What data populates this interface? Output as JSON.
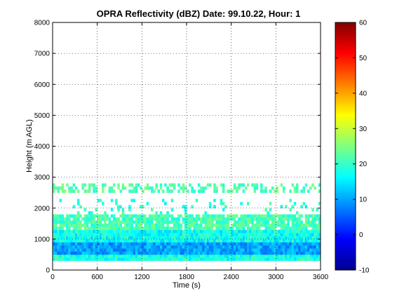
{
  "chart_data": {
    "type": "heatmap",
    "title": "OPRA Reflectivity (dBZ)  Date: 99.10.22, Hour: 1",
    "xlabel": "Time (s)",
    "ylabel": "Height (m AGL)",
    "xlim": [
      0,
      3600
    ],
    "ylim": [
      0,
      8000
    ],
    "x_ticks": [
      0,
      600,
      1200,
      1800,
      2400,
      3000,
      3600
    ],
    "y_ticks": [
      0,
      1000,
      2000,
      3000,
      4000,
      5000,
      6000,
      7000,
      8000
    ],
    "grid": true,
    "colorbar": {
      "range": [
        -10,
        60
      ],
      "ticks": [
        -10,
        0,
        10,
        20,
        30,
        40,
        50,
        60
      ],
      "colormap": "jet"
    },
    "layers": [
      {
        "y_range": [
          300,
          500
        ],
        "dbz": 18,
        "coverage": "continuous"
      },
      {
        "y_range": [
          500,
          900
        ],
        "dbz": 10,
        "coverage": "continuous"
      },
      {
        "y_range": [
          900,
          1300
        ],
        "dbz": 17,
        "coverage": "continuous"
      },
      {
        "y_range": [
          1300,
          1800
        ],
        "dbz": 21,
        "coverage": "mostly"
      },
      {
        "y_range": [
          1800,
          2300
        ],
        "dbz": 19,
        "coverage": "sparse"
      },
      {
        "y_range": [
          2500,
          2800
        ],
        "dbz": 22,
        "coverage": "patchy"
      }
    ]
  }
}
